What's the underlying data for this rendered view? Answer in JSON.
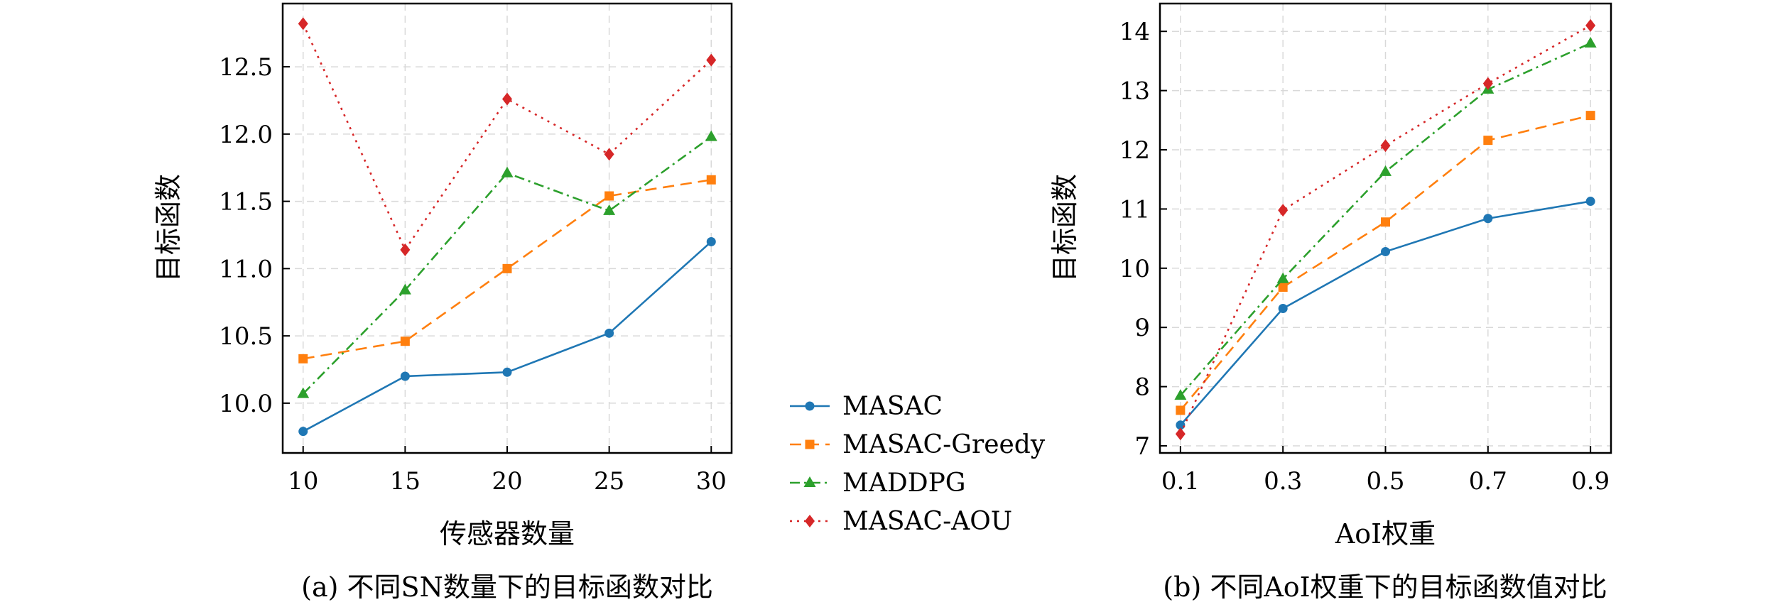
{
  "chart_data": [
    {
      "type": "line",
      "caption": "(a) 不同SN数量下的目标函数对比",
      "xlabel": "传感器数量",
      "ylabel": "目标函数",
      "x": [
        10,
        15,
        20,
        25,
        30
      ],
      "xlim": [
        9,
        31
      ],
      "ylim": [
        9.63,
        12.97
      ],
      "yticks": [
        10.0,
        10.5,
        11.0,
        11.5,
        12.0,
        12.5
      ],
      "ytick_labels": [
        "10.0",
        "10.5",
        "11.0",
        "11.5",
        "12.0",
        "12.5"
      ],
      "xtick_labels": [
        "10",
        "15",
        "20",
        "25",
        "30"
      ],
      "grid": true,
      "series": [
        {
          "name": "MASAC",
          "values": [
            9.79,
            10.2,
            10.23,
            10.52,
            11.2
          ]
        },
        {
          "name": "MASAC-Greedy",
          "values": [
            10.33,
            10.46,
            11.0,
            11.54,
            11.66
          ]
        },
        {
          "name": "MADDPG",
          "values": [
            10.07,
            10.84,
            11.71,
            11.43,
            11.98
          ]
        },
        {
          "name": "MASAC-AOU",
          "values": [
            12.82,
            11.14,
            12.26,
            11.85,
            12.55
          ]
        }
      ]
    },
    {
      "type": "line",
      "caption": "(b) 不同AoI权重下的目标函数值对比",
      "xlabel": "AoI权重",
      "ylabel": "目标函数",
      "x": [
        0.1,
        0.3,
        0.5,
        0.7,
        0.9
      ],
      "xlim": [
        0.06,
        0.94
      ],
      "ylim": [
        6.88,
        14.47
      ],
      "yticks": [
        7,
        8,
        9,
        10,
        11,
        12,
        13,
        14
      ],
      "ytick_labels": [
        "7",
        "8",
        "9",
        "10",
        "11",
        "12",
        "13",
        "14"
      ],
      "xtick_labels": [
        "0.1",
        "0.3",
        "0.5",
        "0.7",
        "0.9"
      ],
      "grid": true,
      "series": [
        {
          "name": "MASAC",
          "values": [
            7.35,
            9.32,
            10.28,
            10.84,
            11.13
          ]
        },
        {
          "name": "MASAC-Greedy",
          "values": [
            7.6,
            9.68,
            10.78,
            12.16,
            12.58
          ]
        },
        {
          "name": "MADDPG",
          "values": [
            7.85,
            9.82,
            11.63,
            13.02,
            13.8
          ]
        },
        {
          "name": "MASAC-AOU",
          "values": [
            7.2,
            10.98,
            12.07,
            13.12,
            14.1
          ]
        }
      ]
    }
  ],
  "legend": {
    "placement": "center between panels",
    "entries": [
      "MASAC",
      "MASAC-Greedy",
      "MADDPG",
      "MASAC-AOU"
    ]
  },
  "styles": [
    {
      "color": "#1f77b4",
      "marker": "circle",
      "dash": ""
    },
    {
      "color": "#ff7f0e",
      "marker": "square",
      "dash": "16 9"
    },
    {
      "color": "#2ca02c",
      "marker": "triangle",
      "dash": "14 6 3 6"
    },
    {
      "color": "#d62728",
      "marker": "diamond",
      "dash": "3 7"
    }
  ]
}
